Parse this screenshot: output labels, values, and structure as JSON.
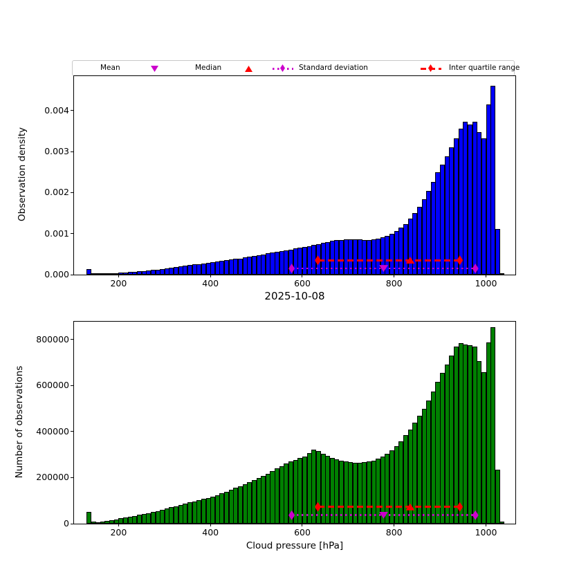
{
  "figure": {
    "title": "2025-10-08",
    "xlabel": "Cloud pressure [hPa]",
    "background": "#ffffff"
  },
  "legend": {
    "items": [
      {
        "label": "Mean",
        "marker": "triangle-down-icon",
        "color": "#cc00cc"
      },
      {
        "label": "Median",
        "marker": "triangle-up-icon",
        "color": "#ff0000"
      },
      {
        "label": "Standard deviation",
        "marker": "diamond-dotted-line-icon",
        "color": "#cc00cc"
      },
      {
        "label": "Inter quartile range",
        "marker": "diamond-dashed-line-icon",
        "color": "#ff0000"
      }
    ]
  },
  "chart_data": [
    {
      "type": "bar",
      "subplot": "top",
      "ylabel": "Observation density",
      "bar_color": "#0000ff",
      "edge_color": "#000000",
      "bin_start": 130,
      "bin_width": 10,
      "xlim": [
        103,
        1064
      ],
      "ylim": [
        0,
        0.004843
      ],
      "xticks": [
        200,
        400,
        600,
        800,
        1000
      ],
      "ytick_values": [
        0,
        0.001,
        0.002,
        0.003,
        0.004
      ],
      "ytick_labels": [
        "0.000",
        "0.001",
        "0.002",
        "0.003",
        "0.004"
      ],
      "values": [
        0.00013,
        3e-05,
        2.6e-05,
        3e-05,
        3.4e-05,
        3.8e-05,
        4.2e-05,
        5e-05,
        5.6e-05,
        6.2e-05,
        7e-05,
        8e-05,
        9e-05,
        0.0001,
        0.000112,
        0.000125,
        0.00014,
        0.000155,
        0.00017,
        0.000185,
        0.0002,
        0.000215,
        0.00023,
        0.000245,
        0.00026,
        0.000275,
        0.00029,
        0.000305,
        0.00032,
        0.000335,
        0.00035,
        0.000365,
        0.00038,
        0.000395,
        0.000415,
        0.000435,
        0.000455,
        0.000475,
        0.000495,
        0.000515,
        0.000535,
        0.000555,
        0.000575,
        0.000595,
        0.000615,
        0.000635,
        0.000655,
        0.000675,
        0.0007,
        0.000725,
        0.00075,
        0.000775,
        0.0008,
        0.00082,
        0.00084,
        0.000852,
        0.000858,
        0.000862,
        0.000862,
        0.000858,
        0.000852,
        0.000852,
        0.00086,
        0.00088,
        0.00091,
        0.00095,
        0.001,
        0.00106,
        0.00114,
        0.00124,
        0.00136,
        0.0015,
        0.00166,
        0.00184,
        0.00204,
        0.00226,
        0.0025,
        0.00268,
        0.00289,
        0.0031,
        0.00332,
        0.00356,
        0.00373,
        0.00367,
        0.00373,
        0.00348,
        0.00333,
        0.00415,
        0.00461,
        0.00112,
        2e-05
      ],
      "markers": {
        "mean_x": 777,
        "median_x": 835,
        "std_range": [
          577,
          977
        ],
        "iqr_range": [
          634,
          943
        ],
        "std_line_y": 0.00015,
        "iqr_line_y": 0.00035,
        "mean_color": "#cc00cc",
        "median_color": "#ff0000"
      }
    },
    {
      "type": "bar",
      "subplot": "bottom",
      "ylabel": "Number of observations",
      "bar_color": "#008000",
      "edge_color": "#000000",
      "bin_start": 130,
      "bin_width": 10,
      "xlim": [
        103,
        1064
      ],
      "ylim": [
        0,
        878000
      ],
      "xticks": [
        200,
        400,
        600,
        800,
        1000
      ],
      "ytick_values": [
        0,
        200000,
        400000,
        600000,
        800000
      ],
      "ytick_labels": [
        "0",
        "200000",
        "400000",
        "600000",
        "800000"
      ],
      "values": [
        50000,
        9000,
        6000,
        9000,
        13000,
        16000,
        19000,
        24000,
        27000,
        30000,
        34000,
        38000,
        42000,
        46000,
        50000,
        55000,
        60000,
        66000,
        71000,
        76000,
        82000,
        87000,
        92000,
        97000,
        102000,
        107000,
        112000,
        117000,
        124000,
        131000,
        139000,
        147000,
        155000,
        163000,
        171000,
        180000,
        189000,
        198000,
        208000,
        218000,
        229000,
        240000,
        251000,
        261000,
        270000,
        278000,
        285000,
        293000,
        308000,
        323000,
        316000,
        305000,
        296000,
        287000,
        281000,
        275000,
        271000,
        268000,
        266000,
        266000,
        268000,
        271000,
        275000,
        283000,
        293000,
        305000,
        318000,
        338000,
        358000,
        384000,
        410000,
        440000,
        470000,
        500000,
        535000,
        575000,
        615000,
        655000,
        692000,
        730000,
        770000,
        785000,
        780000,
        775000,
        770000,
        706000,
        658000,
        789000,
        855000,
        236000,
        9000
      ],
      "markers": {
        "mean_x": 777,
        "median_x": 835,
        "std_range": [
          577,
          977
        ],
        "iqr_range": [
          634,
          943
        ],
        "std_line_y": 37000,
        "iqr_line_y": 73000,
        "mean_color": "#cc00cc",
        "median_color": "#ff0000"
      }
    }
  ]
}
